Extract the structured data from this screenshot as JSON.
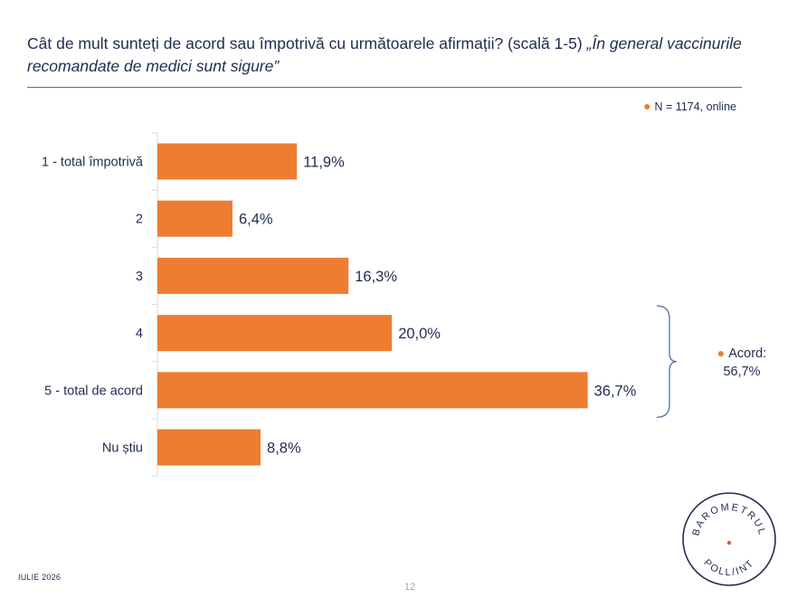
{
  "header": {
    "question": "Cât de mult sunteți de acord sau împotrivă cu următoarele afirmații? (scală 1-5)",
    "quote": "„În general vaccinurile recomandate de medici sunt sigure”"
  },
  "legend": {
    "text": "N = 1174, online"
  },
  "chart_data": {
    "type": "bar",
    "orientation": "horizontal",
    "categories": [
      "1 - total împotrivă",
      "2",
      "3",
      "4",
      "5 - total de acord",
      "Nu știu"
    ],
    "values": [
      11.9,
      6.4,
      16.3,
      20.0,
      36.7,
      8.8
    ],
    "value_labels": [
      "11,9%",
      "6,4%",
      "16,3%",
      "20,0%",
      "36,7%",
      "8,8%"
    ],
    "unit": "%",
    "xlim": [
      0,
      40
    ],
    "bar_color": "#ed7d31",
    "grid": false,
    "legend_position": "top-right",
    "annotation": {
      "label": "Acord:",
      "value": "56,7%",
      "brackets_categories": [
        "4",
        "5 - total de acord"
      ]
    }
  },
  "footer": {
    "date": "IULIE 2026",
    "page": "12"
  },
  "logo": {
    "top_text": "BAROMETRUL",
    "bottom_text": "POLL/INT"
  }
}
